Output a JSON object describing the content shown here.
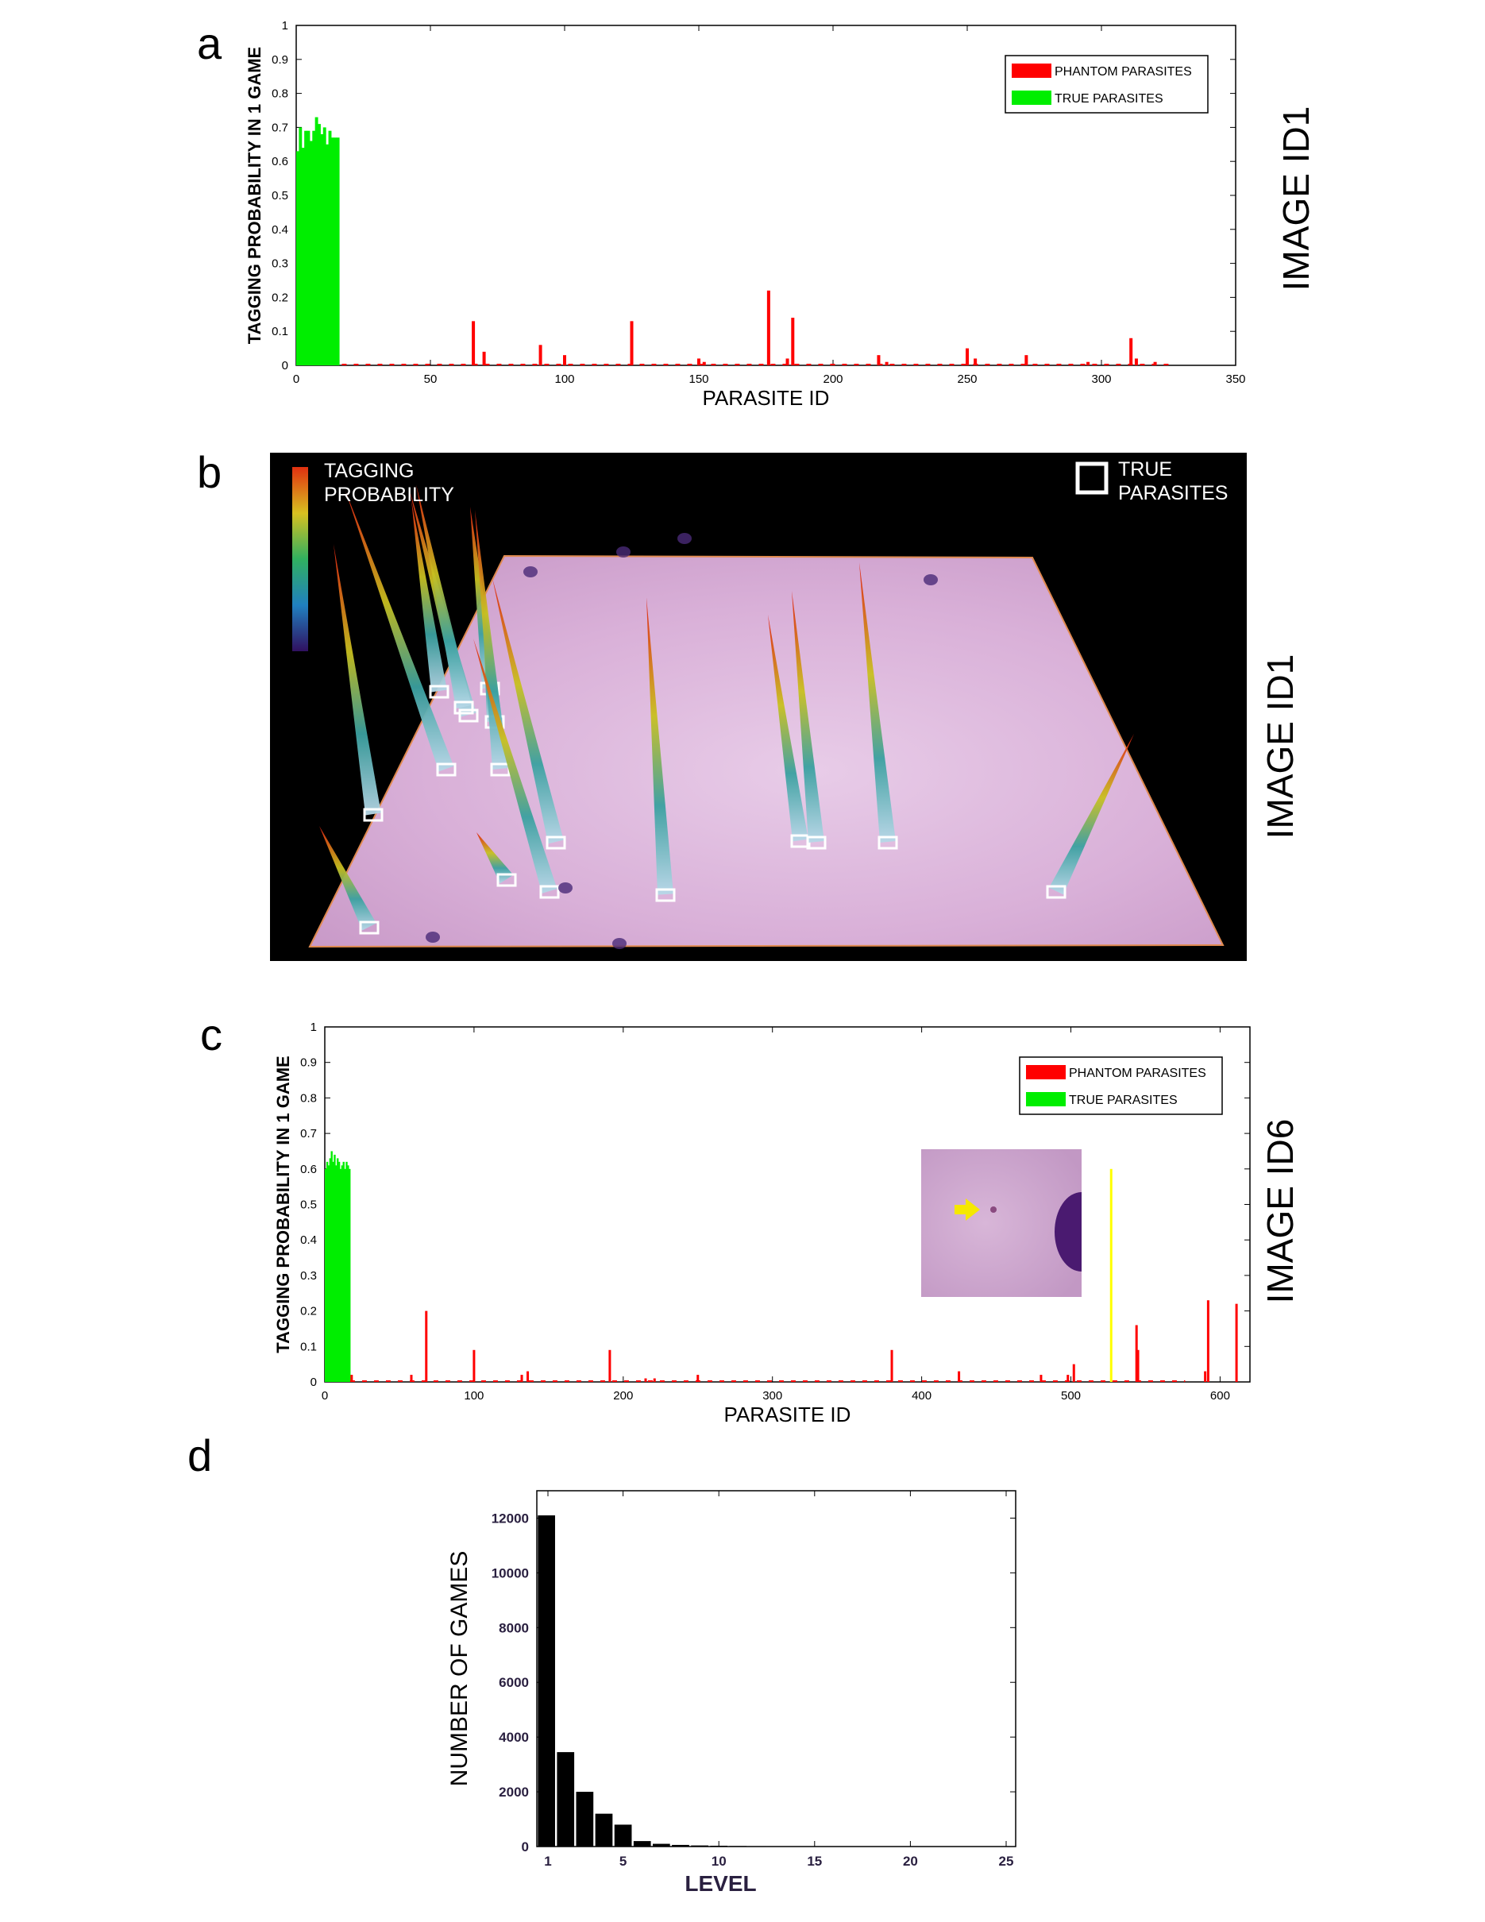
{
  "panel_letters": {
    "a": "a",
    "b": "b",
    "c": "c",
    "d": "d"
  },
  "side_labels": {
    "a": "IMAGE ID1",
    "b": "IMAGE ID1",
    "c": "IMAGE ID6"
  },
  "panel_b": {
    "colorbar_label": "TAGGING\nPROBABILITY",
    "legend_label": "TRUE\nPARASITES"
  },
  "colors": {
    "phantom": "#ff0000",
    "true": "#00ee00",
    "highlight": "#ffff00",
    "level_bars": "#000000"
  },
  "chart_data": [
    {
      "id": "a",
      "type": "bar",
      "ylabel": "TAGGING PROBABILITY IN 1 GAME",
      "xlabel": "PARASITE ID",
      "xlim": [
        0,
        350
      ],
      "ylim": [
        0,
        1
      ],
      "xticks": [
        0,
        50,
        100,
        150,
        200,
        250,
        300,
        350
      ],
      "yticks": [
        0,
        0.1,
        0.2,
        0.3,
        0.4,
        0.5,
        0.6,
        0.7,
        0.8,
        0.9,
        1
      ],
      "legend": {
        "position": "top-right",
        "entries": [
          "PHANTOM PARASITES",
          "TRUE PARASITES"
        ]
      },
      "series": [
        {
          "name": "TRUE PARASITES",
          "x": [
            1,
            2,
            3,
            4,
            5,
            6,
            7,
            8,
            9,
            10,
            11,
            12,
            13,
            14,
            15,
            16
          ],
          "values": [
            0.63,
            0.7,
            0.64,
            0.69,
            0.69,
            0.66,
            0.69,
            0.73,
            0.71,
            0.68,
            0.7,
            0.65,
            0.69,
            0.67,
            0.67,
            0.67
          ]
        },
        {
          "name": "PHANTOM PARASITES",
          "x": [
            66,
            70,
            91,
            100,
            125,
            150,
            152,
            176,
            183,
            185,
            217,
            220,
            250,
            253,
            272,
            295,
            311,
            313,
            320
          ],
          "values": [
            0.13,
            0.04,
            0.06,
            0.03,
            0.13,
            0.02,
            0.01,
            0.22,
            0.02,
            0.14,
            0.03,
            0.01,
            0.05,
            0.02,
            0.03,
            0.01,
            0.08,
            0.02,
            0.01
          ]
        }
      ]
    },
    {
      "id": "c",
      "type": "bar",
      "ylabel": "TAGGING PROBABILITY IN 1 GAME",
      "xlabel": "PARASITE ID",
      "xlim": [
        0,
        620
      ],
      "ylim": [
        0,
        1
      ],
      "xticks": [
        0,
        100,
        200,
        300,
        400,
        500,
        600
      ],
      "yticks": [
        0,
        0.1,
        0.2,
        0.3,
        0.4,
        0.5,
        0.6,
        0.7,
        0.8,
        0.9,
        1
      ],
      "legend": {
        "position": "top-right",
        "entries": [
          "PHANTOM PARASITES",
          "TRUE PARASITES"
        ]
      },
      "series": [
        {
          "name": "TRUE PARASITES",
          "x": [
            1,
            2,
            3,
            4,
            5,
            6,
            7,
            8,
            9,
            10,
            11,
            12,
            13,
            14,
            15,
            16,
            17
          ],
          "values": [
            0.6,
            0.62,
            0.61,
            0.63,
            0.65,
            0.62,
            0.64,
            0.61,
            0.63,
            0.62,
            0.6,
            0.61,
            0.62,
            0.6,
            0.62,
            0.61,
            0.6
          ]
        },
        {
          "name": "PHANTOM PARASITES",
          "x": [
            18,
            58,
            68,
            100,
            132,
            136,
            191,
            215,
            221,
            250,
            380,
            425,
            480,
            498,
            502,
            544,
            545,
            590,
            592,
            611
          ],
          "values": [
            0.02,
            0.02,
            0.2,
            0.09,
            0.02,
            0.03,
            0.09,
            0.01,
            0.01,
            0.02,
            0.09,
            0.03,
            0.02,
            0.02,
            0.05,
            0.16,
            0.09,
            0.03,
            0.23,
            0.22
          ]
        }
      ],
      "highlight": {
        "x": 527,
        "value": 0.6
      }
    },
    {
      "id": "d",
      "type": "bar",
      "ylabel": "NUMBER OF GAMES",
      "xlabel": "LEVEL",
      "xlim": [
        0,
        25
      ],
      "ylim": [
        0,
        13000
      ],
      "xticks": [
        1,
        5,
        10,
        15,
        20,
        25
      ],
      "yticks": [
        0,
        2000,
        4000,
        6000,
        8000,
        10000,
        12000
      ],
      "categories": [
        1,
        2,
        3,
        4,
        5,
        6,
        7,
        8,
        9,
        10,
        11,
        12,
        13,
        14,
        15,
        16,
        17,
        18,
        19,
        20,
        21,
        22,
        23,
        24,
        25
      ],
      "values": [
        12100,
        3450,
        2000,
        1200,
        800,
        200,
        100,
        60,
        40,
        30,
        20,
        15,
        10,
        8,
        6,
        5,
        4,
        3,
        2,
        2,
        1,
        1,
        1,
        1,
        1
      ]
    }
  ]
}
